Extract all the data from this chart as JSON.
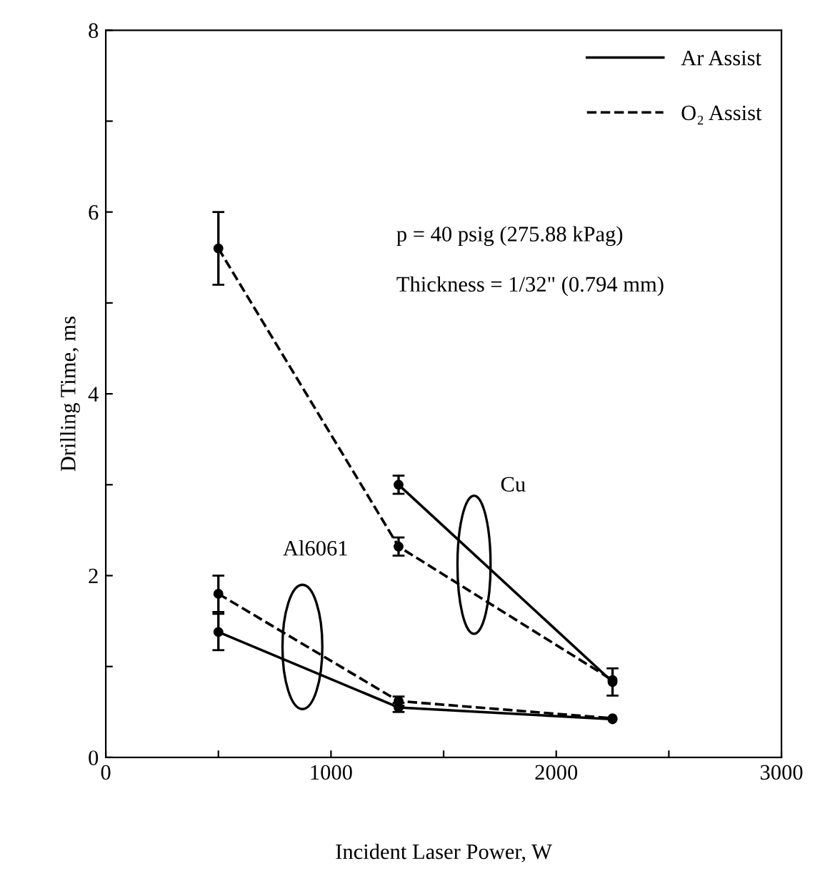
{
  "chart_data": {
    "type": "line",
    "xlabel": "Incident Laser Power, W",
    "ylabel": "Drilling Time, ms",
    "xlim": [
      0,
      3000
    ],
    "ylim": [
      0,
      8
    ],
    "xticks": [
      0,
      {
        "value": 500,
        "label": null
      },
      1000,
      {
        "value": 1500,
        "label": null
      },
      2000,
      {
        "value": 2500,
        "label": null
      },
      3000
    ],
    "yticks": [
      0,
      {
        "value": 1,
        "label": null
      },
      2,
      {
        "value": 3,
        "label": null
      },
      4,
      {
        "value": 5,
        "label": null
      },
      6,
      {
        "value": 7,
        "label": null
      },
      8
    ],
    "grid": false,
    "legend": "top right",
    "marker": "circle",
    "series": [
      {
        "name": "Ar Assist",
        "color": "#000000",
        "line_style": "solid",
        "x": [
          500,
          1300,
          2250
        ],
        "values": [
          1.38,
          0.55,
          0.42
        ],
        "errors": [
          0.2,
          0.05,
          null
        ]
      },
      {
        "name": "O₂ Assist",
        "color": "#000000",
        "line_style": "dashed",
        "x": [
          500,
          1300,
          2250
        ],
        "values": [
          1.8,
          0.62,
          0.43
        ],
        "errors": [
          0.2,
          0.05,
          null
        ]
      },
      {
        "color": "#000000",
        "line_style": "solid",
        "x": [
          1300,
          2250
        ],
        "values": [
          3.0,
          0.83
        ],
        "errors": [
          0.1,
          0.15
        ]
      },
      {
        "color": "#000000",
        "line_style": "dashed",
        "x": [
          500,
          1300,
          2250
        ],
        "values": [
          5.6,
          2.32,
          0.85
        ],
        "errors": [
          0.4,
          0.1,
          null
        ]
      }
    ],
    "annotations": [
      "Cu",
      "Al6061",
      "p = 40 psig (275.88 kPag)",
      "Thickness = 1/32\" (0.794 mm)"
    ]
  }
}
